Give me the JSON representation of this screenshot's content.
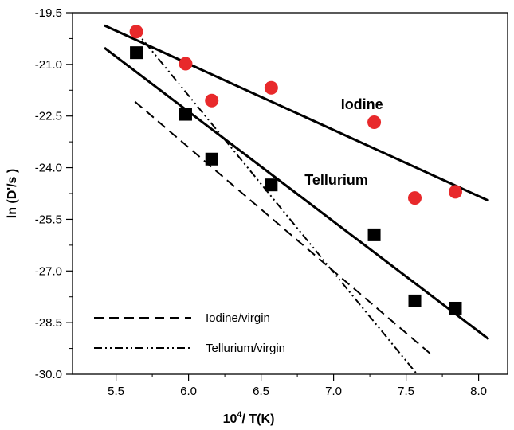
{
  "chart_data": {
    "type": "scatter",
    "xlabel_base": "10",
    "xlabel_sup": "4",
    "xlabel_rest": "/ T(K)",
    "ylabel": "ln (D'/s )",
    "xlim": [
      5.2,
      8.2
    ],
    "ylim": [
      -30.0,
      -19.5
    ],
    "xticks": [
      "5.5",
      "6.0",
      "6.5",
      "7.0",
      "7.5",
      "8.0"
    ],
    "xtick_values": [
      5.5,
      6.0,
      6.5,
      7.0,
      7.5,
      8.0
    ],
    "yticks": [
      "-19.5",
      "-21.0",
      "-22.5",
      "-24.0",
      "-25.5",
      "-27.0",
      "-28.5",
      "-30.0"
    ],
    "ytick_values": [
      -19.5,
      -21.0,
      -22.5,
      -24.0,
      -25.5,
      -27.0,
      -28.5,
      -30.0
    ],
    "series": [
      {
        "name": "Iodine",
        "marker": "circle",
        "color": "#e8292b",
        "points": [
          [
            5.64,
            -20.05
          ],
          [
            5.98,
            -20.98
          ],
          [
            6.16,
            -22.05
          ],
          [
            6.57,
            -21.68
          ],
          [
            7.28,
            -22.68
          ],
          [
            7.56,
            -24.88
          ],
          [
            7.84,
            -24.7
          ]
        ]
      },
      {
        "name": "Tellurium",
        "marker": "square",
        "color": "#000000",
        "points": [
          [
            5.64,
            -20.66
          ],
          [
            5.98,
            -22.45
          ],
          [
            6.16,
            -23.75
          ],
          [
            6.57,
            -24.5
          ],
          [
            7.28,
            -25.95
          ],
          [
            7.56,
            -27.87
          ],
          [
            7.84,
            -28.08
          ]
        ]
      }
    ],
    "fit_lines": [
      {
        "style": "solid",
        "x": [
          5.42,
          8.07
        ],
        "y": [
          -19.87,
          -24.96
        ]
      },
      {
        "style": "solid",
        "x": [
          5.42,
          8.07
        ],
        "y": [
          -20.52,
          -28.98
        ]
      },
      {
        "style": "dashed",
        "x": [
          5.63,
          7.68
        ],
        "y": [
          -22.08,
          -29.45
        ]
      },
      {
        "style": "dashdotdot",
        "x": [
          5.61,
          7.57
        ],
        "y": [
          -19.9,
          -29.97
        ]
      }
    ],
    "annotations": [
      {
        "text": "Iodine",
        "x": 7.05,
        "y": -22.3
      },
      {
        "text": "Tellurium",
        "x": 6.8,
        "y": -24.5
      }
    ],
    "legend": [
      {
        "style": "dashed",
        "label": "Iodine/virgin"
      },
      {
        "style": "dashdotdot",
        "label": "Tellurium/virgin"
      }
    ],
    "legend_position": "bottom-left",
    "grid": false
  }
}
